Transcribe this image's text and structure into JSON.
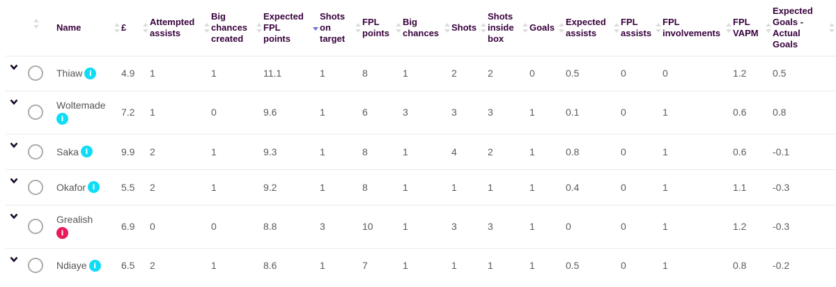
{
  "colors": {
    "info_default": "#0fdcf5",
    "info_alert": "#e9195a",
    "sort_active": "#6e6ed6"
  },
  "headers": [
    "Name",
    "£",
    "Attempted\nassists",
    "Big\nchances\ncreated",
    "Expected\nFPL\npoints",
    "Shots\non\ntarget",
    "FPL\npoints",
    "Big\nchances",
    "Shots",
    "Shots\ninside\nbox",
    "Goals",
    "Expected\nassists",
    "FPL\nassists",
    "FPL\ninvolvements",
    "FPL\nVAPM",
    "Expected\nGoals -\nActual\nGoals"
  ],
  "sorted_column": "Expected FPL points",
  "sort_direction": "descending",
  "rows": [
    {
      "name": "Thiaw",
      "info": "default",
      "wrap": false,
      "values": [
        "4.9",
        "1",
        "1",
        "11.1",
        "1",
        "8",
        "1",
        "2",
        "2",
        "0",
        "0.5",
        "0",
        "0",
        "1.2",
        "0.5"
      ]
    },
    {
      "name": "Woltemade",
      "info": "default",
      "wrap": true,
      "values": [
        "7.2",
        "1",
        "0",
        "9.6",
        "1",
        "6",
        "3",
        "3",
        "3",
        "1",
        "0.1",
        "0",
        "1",
        "0.6",
        "0.8"
      ]
    },
    {
      "name": "Saka",
      "info": "default",
      "wrap": false,
      "values": [
        "9.9",
        "2",
        "1",
        "9.3",
        "1",
        "8",
        "1",
        "4",
        "2",
        "1",
        "0.8",
        "0",
        "1",
        "0.6",
        "-0.1"
      ]
    },
    {
      "name": "Okafor",
      "info": "default",
      "wrap": false,
      "values": [
        "5.5",
        "2",
        "1",
        "9.2",
        "1",
        "8",
        "1",
        "1",
        "1",
        "1",
        "0.4",
        "0",
        "1",
        "1.1",
        "-0.3"
      ]
    },
    {
      "name": "Grealish",
      "info": "alert",
      "wrap": true,
      "values": [
        "6.9",
        "0",
        "0",
        "8.8",
        "3",
        "10",
        "1",
        "3",
        "3",
        "1",
        "0",
        "0",
        "1",
        "1.2",
        "-0.3"
      ]
    },
    {
      "name": "Ndiaye",
      "info": "default",
      "wrap": false,
      "values": [
        "6.5",
        "2",
        "1",
        "8.6",
        "1",
        "7",
        "1",
        "1",
        "1",
        "1",
        "0.5",
        "0",
        "1",
        "0.8",
        "-0.2"
      ]
    }
  ]
}
